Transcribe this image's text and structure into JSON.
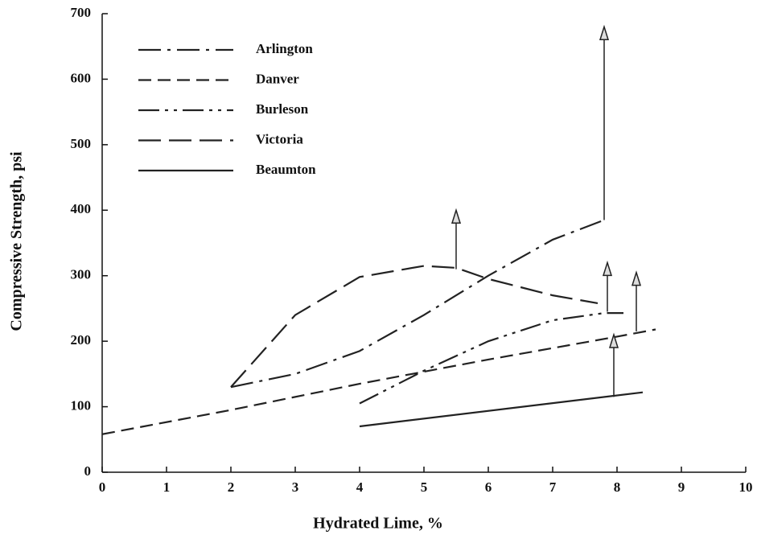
{
  "chart_data": {
    "type": "line",
    "x_label": "Hydrated Lime, %",
    "y_label": "Compressive Strength, psi",
    "xlim": [
      0,
      10
    ],
    "xticks": [
      0,
      1,
      2,
      3,
      4,
      5,
      6,
      7,
      8,
      9,
      10
    ],
    "ylim": [
      0,
      700
    ],
    "yticks": [
      0,
      100,
      200,
      300,
      400,
      500,
      600,
      700
    ],
    "legend": "upper-left",
    "series": [
      {
        "name": "Arlington",
        "color": "#222222",
        "style": "dash-dot",
        "x": [
          2,
          3,
          4,
          5,
          6,
          7,
          7.8
        ],
        "values": [
          130,
          150,
          185,
          240,
          300,
          355,
          385
        ],
        "arrow": {
          "x": 7.8,
          "y_from": 385,
          "y_to": 680
        }
      },
      {
        "name": "Danver",
        "color": "#222222",
        "style": "dashed",
        "x": [
          0,
          2,
          4,
          6,
          8,
          8.6
        ],
        "values": [
          58,
          95,
          135,
          172,
          207,
          218
        ],
        "arrow": {
          "x": 8.3,
          "y_from": 215,
          "y_to": 305
        }
      },
      {
        "name": "Burleson",
        "color": "#222222",
        "style": "dash-dot-dot",
        "x": [
          4,
          5,
          6,
          7,
          7.8,
          8.1
        ],
        "values": [
          105,
          155,
          200,
          232,
          243,
          243
        ],
        "arrow": {
          "x": 7.85,
          "y_from": 245,
          "y_to": 320
        }
      },
      {
        "name": "Victoria",
        "color": "#222222",
        "style": "long-dash",
        "x": [
          2,
          3,
          4,
          5,
          5.5,
          6,
          7,
          7.7
        ],
        "values": [
          130,
          240,
          298,
          315,
          312,
          295,
          270,
          258
        ],
        "arrow": {
          "x": 5.5,
          "y_from": 310,
          "y_to": 400
        }
      },
      {
        "name": "Beaumton",
        "color": "#222222",
        "style": "solid",
        "x": [
          4,
          8.4
        ],
        "values": [
          70,
          122
        ],
        "arrow": {
          "x": 7.95,
          "y_from": 115,
          "y_to": 210
        }
      }
    ]
  }
}
